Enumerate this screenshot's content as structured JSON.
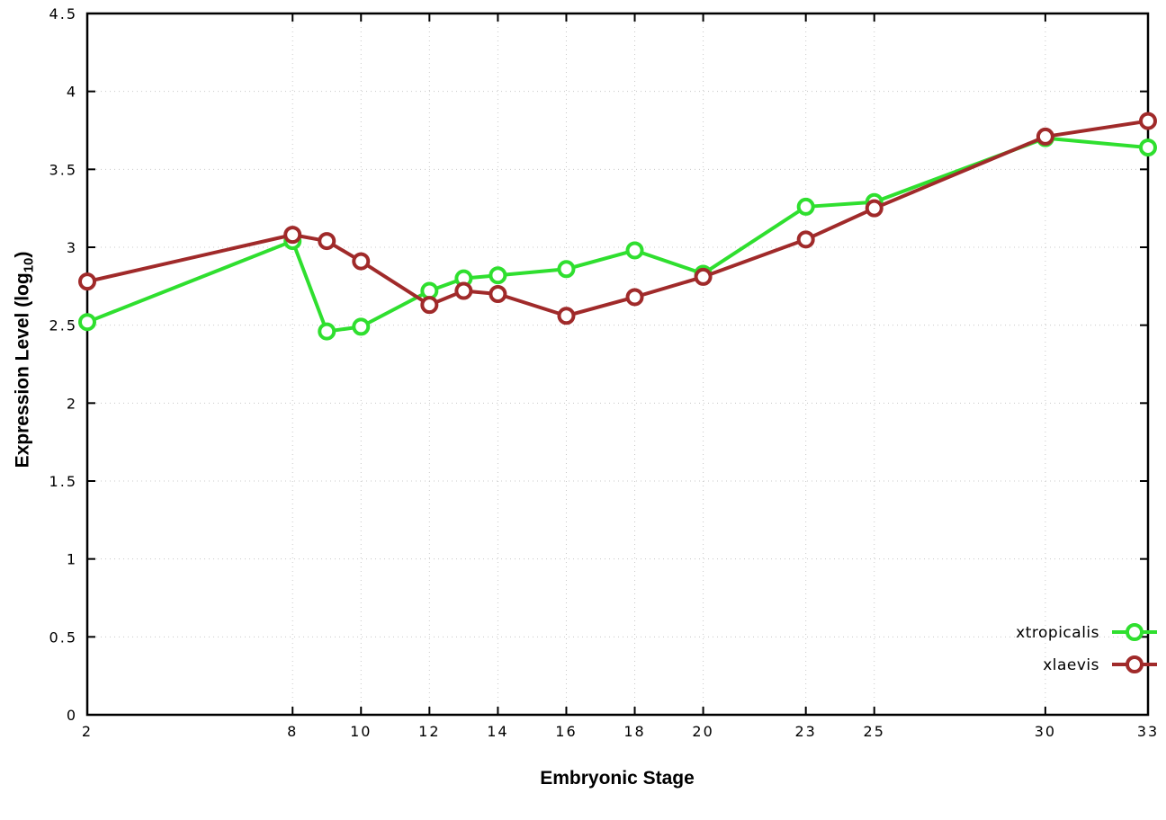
{
  "chart_data": {
    "type": "line",
    "title": "",
    "xlabel": "Embryonic Stage",
    "ylabel_prefix": "Expression Level (log",
    "ylabel_sub": "10",
    "ylabel_suffix": ")",
    "xlim": [
      2,
      33
    ],
    "ylim": [
      0,
      4.5
    ],
    "x_ticks": [
      2,
      8,
      10,
      12,
      14,
      16,
      18,
      20,
      23,
      25,
      30,
      33
    ],
    "y_ticks": [
      0,
      0.5,
      1,
      1.5,
      2,
      2.5,
      3,
      3.5,
      4,
      4.5
    ],
    "grid": true,
    "legend_position": "bottom-right",
    "x": [
      2,
      8,
      9,
      10,
      12,
      13,
      14,
      16,
      18,
      20,
      23,
      25,
      30,
      33
    ],
    "series": [
      {
        "name": "xtropicalis",
        "color": "#2fdf2f",
        "values": [
          2.52,
          3.04,
          2.46,
          2.49,
          2.72,
          2.8,
          2.82,
          2.86,
          2.98,
          2.83,
          3.26,
          3.29,
          3.7,
          3.64
        ]
      },
      {
        "name": "xlaevis",
        "color": "#a02a2a",
        "values": [
          2.78,
          3.08,
          3.04,
          2.91,
          2.63,
          2.72,
          2.7,
          2.56,
          2.68,
          2.81,
          3.05,
          3.25,
          3.71,
          3.81
        ]
      }
    ],
    "colors": {
      "border": "#000000",
      "grid": "#c8c8c8",
      "background": "#ffffff"
    }
  }
}
